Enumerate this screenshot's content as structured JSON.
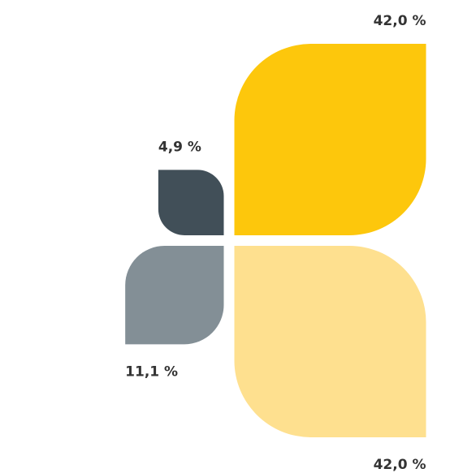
{
  "chart_data": {
    "type": "leaf",
    "values": [
      42.0,
      42.0,
      11.1,
      4.9
    ],
    "value_labels": [
      "42,0 %",
      "42,0 %",
      "11,1 %",
      "4,9 %"
    ],
    "colors": [
      "#fdc70c",
      "#fee08f",
      "#838f96",
      "#414f58"
    ]
  }
}
